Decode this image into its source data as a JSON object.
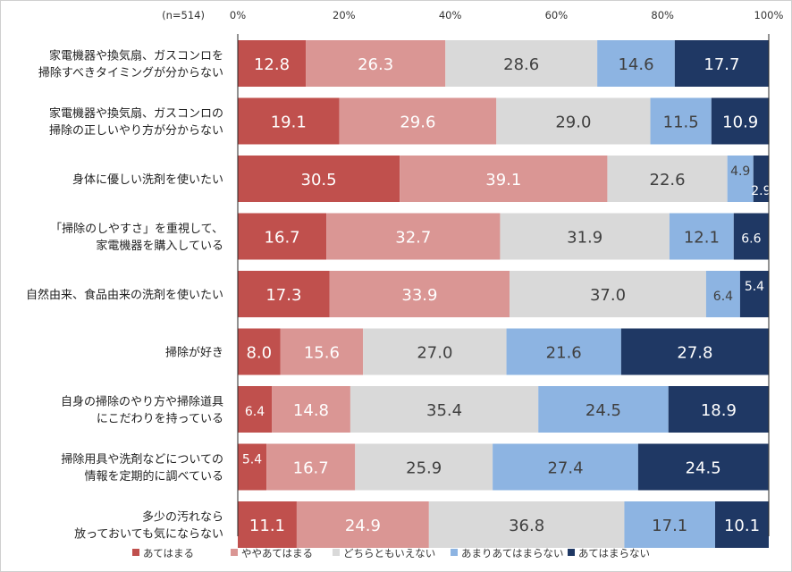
{
  "chart_data": {
    "type": "bar",
    "orientation": "horizontal-stacked-100",
    "sample_label": "(n=514)",
    "x_ticks": [
      "0%",
      "20%",
      "40%",
      "60%",
      "80%",
      "100%"
    ],
    "xlim": [
      0,
      100
    ],
    "categories": [
      [
        "家電機器や換気扇、ガスコンロを",
        "掃除すべきタイミングが分からない"
      ],
      [
        "家電機器や換気扇、ガスコンロの",
        "掃除の正しいやり方が分からない"
      ],
      [
        "身体に優しい洗剤を使いたい"
      ],
      [
        "「掃除のしやすさ」を重視して、",
        "家電機器を購入している"
      ],
      [
        "自然由来、食品由来の洗剤を使いたい"
      ],
      [
        "掃除が好き"
      ],
      [
        "自身の掃除のやり方や掃除道具",
        "にこだわりを持っている"
      ],
      [
        "掃除用具や洗剤などについての",
        "情報を定期的に調べている"
      ],
      [
        "多少の汚れなら",
        "放っておいても気にならない"
      ]
    ],
    "series": [
      {
        "name": "あてはまる",
        "color": "#c0504d",
        "label_color": "#ffffff",
        "values": [
          12.8,
          19.1,
          30.5,
          16.7,
          17.3,
          8.0,
          6.4,
          5.4,
          11.1
        ]
      },
      {
        "name": "ややあてはまる",
        "color": "#da9694",
        "label_color": "#ffffff",
        "values": [
          26.3,
          29.6,
          39.1,
          32.7,
          33.9,
          15.6,
          14.8,
          16.7,
          24.9
        ]
      },
      {
        "name": "どちらともいえない",
        "color": "#d9d9d9",
        "label_color": "#404040",
        "values": [
          28.6,
          29.0,
          22.6,
          31.9,
          37.0,
          27.0,
          35.4,
          25.9,
          36.8
        ]
      },
      {
        "name": "あまりあてはまらない",
        "color": "#8db4e2",
        "label_color": "#404040",
        "values": [
          14.6,
          11.5,
          4.9,
          12.1,
          6.4,
          21.6,
          24.5,
          27.4,
          17.1
        ]
      },
      {
        "name": "あてはまらない",
        "color": "#1f3864",
        "label_color": "#ffffff",
        "values": [
          17.7,
          10.9,
          2.9,
          6.6,
          5.4,
          27.8,
          18.9,
          24.5,
          10.1
        ]
      }
    ]
  }
}
